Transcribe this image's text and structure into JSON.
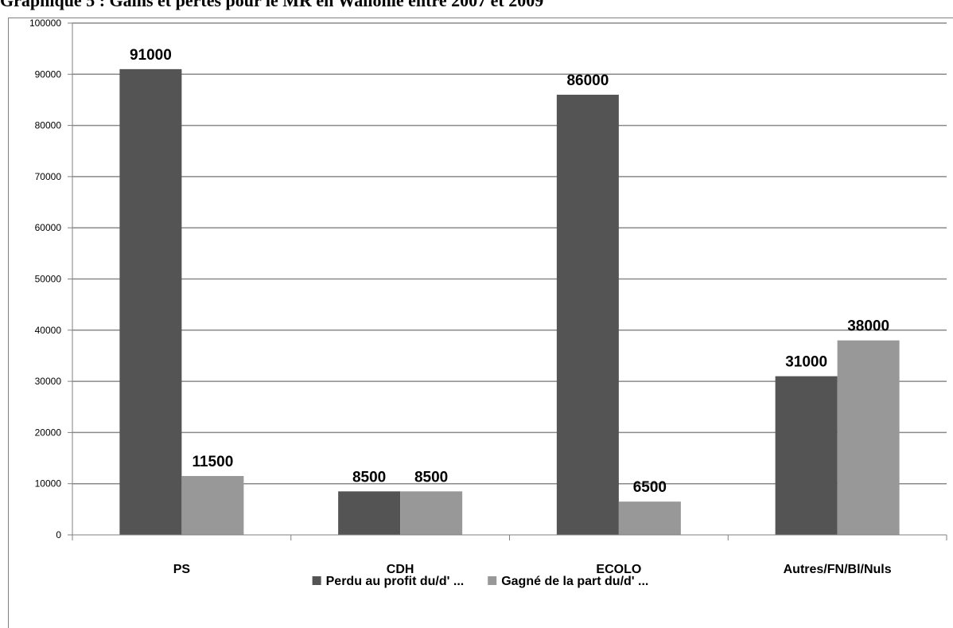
{
  "page": {
    "title": "Graphique 5 : Gains et pertes pour le MR en Wallonie entre 2007 et 2009"
  },
  "chart_data": {
    "type": "bar",
    "title": "Graphique 5 : Gains et pertes pour le MR en Wallonie entre 2007 et 2009",
    "categories": [
      "PS",
      "CDH",
      "ECOLO",
      "Autres/FN/Bl/Nuls"
    ],
    "series": [
      {
        "name": "Perdu au profit du/d' ...",
        "color": "#545454",
        "values": [
          91000,
          8500,
          86000,
          31000
        ]
      },
      {
        "name": "Gagné de la part du/d' ...",
        "color": "#989898",
        "values": [
          11500,
          8500,
          6500,
          38000
        ]
      }
    ],
    "ylim": [
      0,
      100000
    ],
    "yticks": [
      0,
      10000,
      20000,
      30000,
      40000,
      50000,
      60000,
      70000,
      80000,
      90000,
      100000
    ],
    "grid": true,
    "legend": "bottom",
    "data_labels": true
  }
}
